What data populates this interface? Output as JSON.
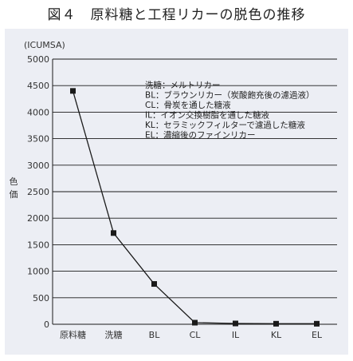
{
  "figure_title": "図４　原料糖と工程リカーの脱色の推移",
  "chart_data": {
    "type": "line",
    "title": "図４　原料糖と工程リカーの脱色の推移",
    "unit_label": "(ICUMSA)",
    "ylabel": "色価",
    "ylim": [
      0,
      5000
    ],
    "yticks": [
      0,
      500,
      1000,
      1500,
      2000,
      2500,
      3000,
      3500,
      4000,
      4500,
      5000
    ],
    "grid": true,
    "categories": [
      "原料糖",
      "洗糖",
      "BL",
      "CL",
      "IL",
      "KL",
      "EL"
    ],
    "series": [
      {
        "values": [
          4400,
          1720,
          760,
          30,
          15,
          10,
          10
        ]
      }
    ],
    "legend": {
      "placement": "top-right",
      "entries": [
        "洗糖：メルトリカー",
        "BL：ブラウンリカー（炭酸飽充後の濾過液）",
        "CL：骨炭を通した糖液",
        "IL：イオン交換樹脂を通した糖液",
        "KL：セラミックフィルターで濾過した糖液",
        "EL：濃縮後のファインリカー"
      ]
    },
    "colors": {
      "line": "#1a1a1a",
      "marker": "#1a1a1a",
      "grid": "#1a1a1a",
      "panel": "#eceef4"
    }
  }
}
